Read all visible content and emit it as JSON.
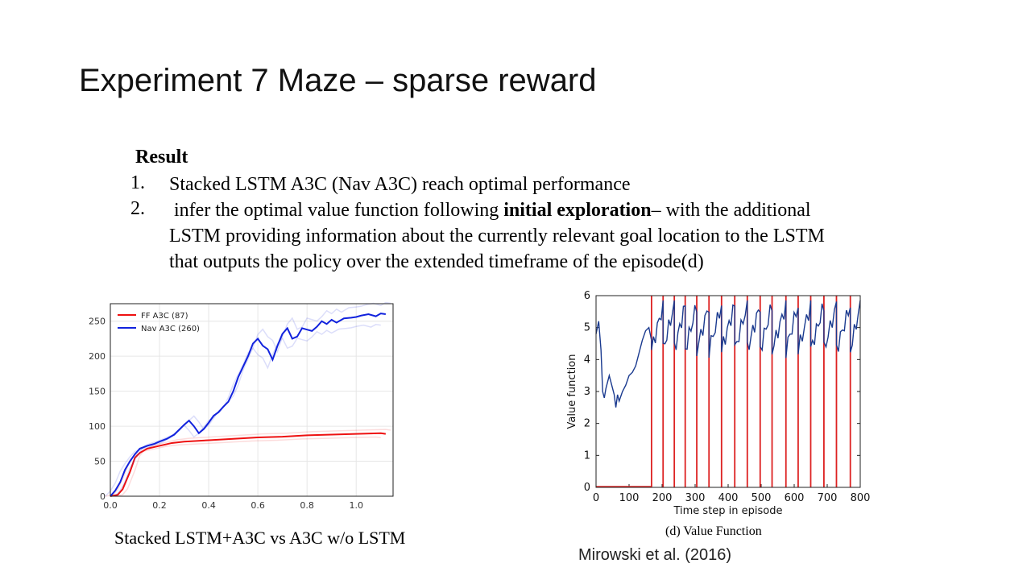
{
  "slide": {
    "title": "Experiment 7 Maze – sparse reward",
    "result_heading": "Result",
    "items": [
      {
        "number": "1.",
        "text": "Stacked LSTM A3C (Nav A3C) reach optimal performance"
      },
      {
        "number": "2.",
        "line1_before": " infer the optimal value function following ",
        "line1_bold": "initial exploration",
        "line1_after": "– with the additional",
        "line2": "LSTM providing information about the currently relevant goal location to the LSTM",
        "line3": "that outputs the policy over the extended timeframe of the episode(d)"
      }
    ],
    "left_caption": "Stacked LSTM+A3C vs A3C w/o LSTM",
    "right_caption": "(d) Value Function",
    "citation": "Mirowski et al. (2016)"
  },
  "chart_data": [
    {
      "type": "line",
      "xlim": [
        0.0,
        1.15
      ],
      "ylim": [
        0,
        275
      ],
      "x_ticks": [
        "0.0",
        "0.2",
        "0.4",
        "0.6",
        "0.8",
        "1.0"
      ],
      "y_ticks": [
        "0",
        "50",
        "100",
        "150",
        "200",
        "250"
      ],
      "grid": true,
      "legend_position": "top-left",
      "series": [
        {
          "name": "FF A3C (87)",
          "color": "#ee1111",
          "x": [
            0.0,
            0.03,
            0.05,
            0.08,
            0.1,
            0.12,
            0.15,
            0.2,
            0.25,
            0.3,
            0.4,
            0.5,
            0.6,
            0.7,
            0.8,
            0.9,
            1.0,
            1.1,
            1.12
          ],
          "y": [
            0,
            2,
            10,
            35,
            55,
            62,
            68,
            72,
            76,
            78,
            80,
            82,
            84,
            85,
            87,
            88,
            89,
            90,
            89
          ]
        },
        {
          "name": "Nav A3C (260)",
          "color": "#1122dd",
          "x": [
            0.0,
            0.02,
            0.04,
            0.06,
            0.08,
            0.1,
            0.12,
            0.15,
            0.18,
            0.2,
            0.23,
            0.26,
            0.28,
            0.3,
            0.32,
            0.34,
            0.36,
            0.38,
            0.4,
            0.42,
            0.44,
            0.46,
            0.48,
            0.5,
            0.52,
            0.54,
            0.56,
            0.58,
            0.6,
            0.62,
            0.64,
            0.66,
            0.68,
            0.7,
            0.72,
            0.74,
            0.76,
            0.78,
            0.8,
            0.82,
            0.84,
            0.86,
            0.88,
            0.9,
            0.92,
            0.95,
            0.98,
            1.0,
            1.02,
            1.05,
            1.08,
            1.1,
            1.12
          ],
          "y": [
            0,
            8,
            20,
            38,
            50,
            60,
            68,
            72,
            75,
            78,
            82,
            88,
            95,
            102,
            108,
            100,
            90,
            96,
            105,
            115,
            120,
            128,
            135,
            150,
            170,
            185,
            200,
            218,
            225,
            215,
            210,
            195,
            215,
            232,
            240,
            225,
            228,
            240,
            238,
            236,
            242,
            250,
            246,
            252,
            248,
            254,
            255,
            256,
            258,
            260,
            257,
            261,
            260
          ]
        }
      ]
    },
    {
      "type": "line",
      "xlabel": "Time step in episode",
      "ylabel": "Value function",
      "xlim": [
        0,
        800
      ],
      "ylim": [
        0,
        6
      ],
      "x_ticks": [
        "0",
        "100",
        "200",
        "300",
        "400",
        "500",
        "600",
        "700",
        "800"
      ],
      "y_ticks": [
        "0",
        "1",
        "2",
        "3",
        "4",
        "5",
        "6"
      ],
      "grid": false,
      "series": [
        {
          "color": "#1a3a8f",
          "x": [
            0,
            8,
            15,
            20,
            25,
            30,
            40,
            50,
            55,
            60,
            65,
            70,
            80,
            90,
            100,
            110,
            120,
            130,
            140,
            150,
            160,
            168
          ],
          "y": [
            4.8,
            5.2,
            4.3,
            3.0,
            2.8,
            3.1,
            3.5,
            3.1,
            2.9,
            2.5,
            2.9,
            2.7,
            3.0,
            3.2,
            3.5,
            3.6,
            3.8,
            4.2,
            4.6,
            4.9,
            5.0,
            4.6
          ]
        },
        {
          "color": "#dd2222",
          "reward_steps": [
            168,
            203,
            237,
            270,
            305,
            342,
            380,
            420,
            458,
            497,
            533,
            575,
            612,
            650,
            690,
            728,
            770
          ]
        }
      ]
    }
  ]
}
